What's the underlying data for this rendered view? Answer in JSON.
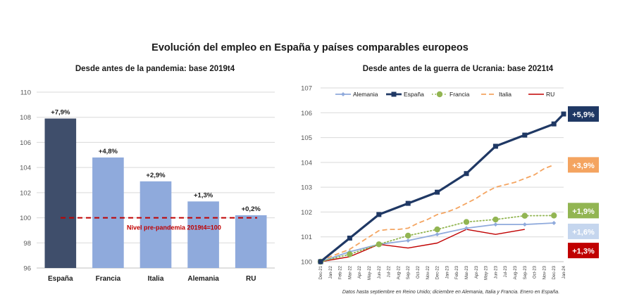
{
  "page": {
    "title": "Evolución del empleo en España y países comparables europeos",
    "source_note": "Datos hasta septiembre en Reino Unido; diciembre en Alemania, Italia y Francia. Enero en España."
  },
  "chart_data": [
    {
      "type": "bar",
      "title": "Desde antes de la pandemia: base 2019t4",
      "categories": [
        "España",
        "Francia",
        "Italia",
        "Alemania",
        "RU"
      ],
      "values": [
        107.9,
        104.8,
        102.9,
        101.3,
        100.2
      ],
      "data_labels": [
        "+7,9%",
        "+4,8%",
        "+2,9%",
        "+1,3%",
        "+0,2%"
      ],
      "bar_colors": [
        "#3f4e6b",
        "#8faadc",
        "#8faadc",
        "#8faadc",
        "#8faadc"
      ],
      "ylim": [
        96,
        110
      ],
      "yticks": [
        96,
        98,
        100,
        102,
        104,
        106,
        108,
        110
      ],
      "grid": true,
      "reference_line": {
        "value": 100,
        "label": "Nivel pre-pandemia 2019t4=100",
        "color": "#c00000"
      }
    },
    {
      "type": "line",
      "title": "Desde antes de la guerra de Ucrania: base 2021t4",
      "x": [
        "Dec-21",
        "Jan-22",
        "Feb-22",
        "Mar-22",
        "Apr-22",
        "May-22",
        "Jun-22",
        "Jul-22",
        "Aug-22",
        "Sep-22",
        "Oct-22",
        "Nov-22",
        "Dec-22",
        "Jan-23",
        "Feb-23",
        "Mar-23",
        "Apr-23",
        "May-23",
        "Jun-23",
        "Jul-23",
        "Aug-23",
        "Sep-23",
        "Oct-23",
        "Nov-23",
        "Dec-23",
        "Jan-24"
      ],
      "ylim": [
        100,
        107
      ],
      "yticks": [
        100,
        101,
        102,
        103,
        104,
        105,
        106,
        107
      ],
      "grid": true,
      "legend_position": "top",
      "series": [
        {
          "name": "Alemania",
          "color": "#8faadc",
          "style": "solid-diamond",
          "points": [
            [
              0,
              100.0
            ],
            [
              3,
              100.4
            ],
            [
              6,
              100.7
            ],
            [
              9,
              100.85
            ],
            [
              12,
              101.1
            ],
            [
              15,
              101.35
            ],
            [
              18,
              101.5
            ],
            [
              21,
              101.5
            ],
            [
              24,
              101.56
            ]
          ],
          "end_label": "+1,6%",
          "end_label_bg": "#c5d6ee"
        },
        {
          "name": "España",
          "color": "#1f3864",
          "style": "thick-square",
          "points": [
            [
              0,
              100.0
            ],
            [
              3,
              100.95
            ],
            [
              6,
              101.9
            ],
            [
              9,
              102.35
            ],
            [
              12,
              102.8
            ],
            [
              15,
              103.55
            ],
            [
              18,
              104.65
            ],
            [
              21,
              105.1
            ],
            [
              24,
              105.55
            ],
            [
              25,
              105.95
            ]
          ],
          "end_label": "+5,9%",
          "end_label_bg": "#1f3864"
        },
        {
          "name": "Francia",
          "color": "#92b552",
          "style": "dotted-circle",
          "points": [
            [
              0,
              100.0
            ],
            [
              3,
              100.3
            ],
            [
              6,
              100.7
            ],
            [
              9,
              101.05
            ],
            [
              12,
              101.3
            ],
            [
              15,
              101.6
            ],
            [
              18,
              101.7
            ],
            [
              21,
              101.85
            ],
            [
              24,
              101.86
            ]
          ],
          "end_label": "+1,9%",
          "end_label_bg": "#92b552"
        },
        {
          "name": "Italia",
          "color": "#f4a460",
          "style": "dashed",
          "points": [
            [
              0,
              100.0
            ],
            [
              1,
              100.2
            ],
            [
              2,
              100.35
            ],
            [
              3,
              100.5
            ],
            [
              4,
              100.75
            ],
            [
              5,
              101.0
            ],
            [
              6,
              101.25
            ],
            [
              7,
              101.3
            ],
            [
              8,
              101.3
            ],
            [
              9,
              101.35
            ],
            [
              10,
              101.55
            ],
            [
              11,
              101.7
            ],
            [
              12,
              101.9
            ],
            [
              13,
              102.0
            ],
            [
              14,
              102.15
            ],
            [
              15,
              102.35
            ],
            [
              16,
              102.55
            ],
            [
              17,
              102.8
            ],
            [
              18,
              103.0
            ],
            [
              19,
              103.1
            ],
            [
              20,
              103.2
            ],
            [
              21,
              103.35
            ],
            [
              22,
              103.5
            ],
            [
              23,
              103.75
            ],
            [
              24,
              103.9
            ]
          ],
          "end_label": "+3,9%",
          "end_label_bg": "#f4a460"
        },
        {
          "name": "RU",
          "color": "#c00000",
          "style": "solid",
          "points": [
            [
              0,
              100.0
            ],
            [
              3,
              100.2
            ],
            [
              6,
              100.7
            ],
            [
              9,
              100.55
            ],
            [
              12,
              100.75
            ],
            [
              15,
              101.3
            ],
            [
              18,
              101.1
            ],
            [
              21,
              101.3
            ]
          ],
          "end_label": "+1,3%",
          "end_label_bg": "#c00000"
        }
      ]
    }
  ]
}
